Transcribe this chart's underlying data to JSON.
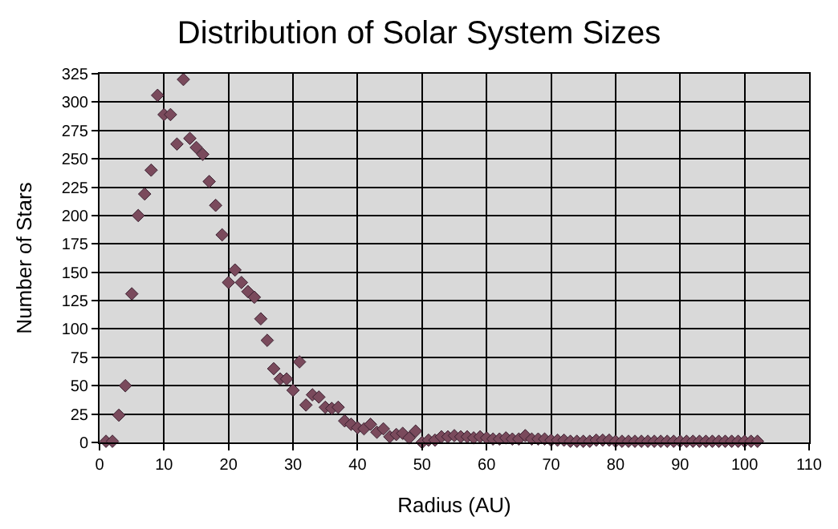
{
  "chart_data": {
    "type": "scatter",
    "title": "Distribution of Solar System Sizes",
    "xlabel": "Radius (AU)",
    "ylabel": "Number of Stars",
    "x": [
      1,
      2,
      3,
      4,
      5,
      6,
      7,
      8,
      9,
      10,
      11,
      12,
      13,
      14,
      15,
      16,
      17,
      18,
      19,
      20,
      21,
      22,
      23,
      24,
      25,
      26,
      27,
      28,
      29,
      30,
      31,
      32,
      33,
      34,
      35,
      36,
      37,
      38,
      39,
      40,
      41,
      42,
      43,
      44,
      45,
      46,
      47,
      48,
      49,
      50,
      51,
      52,
      53,
      54,
      55,
      56,
      57,
      58,
      59,
      60,
      61,
      62,
      63,
      64,
      65,
      66,
      67,
      68,
      69,
      70,
      71,
      72,
      73,
      74,
      75,
      76,
      77,
      78,
      79,
      80,
      81,
      82,
      83,
      84,
      85,
      86,
      87,
      88,
      89,
      90,
      91,
      92,
      93,
      94,
      95,
      96,
      97,
      98,
      99,
      100,
      101,
      102
    ],
    "series": [
      {
        "color": "#7a4a5c",
        "values": [
          1,
          1,
          24,
          50,
          131,
          200,
          219,
          240,
          306,
          289,
          289,
          263,
          320,
          268,
          260,
          254,
          230,
          209,
          183,
          141,
          152,
          141,
          133,
          128,
          109,
          90,
          65,
          56,
          56,
          46,
          71,
          33,
          42,
          40,
          31,
          30,
          31,
          19,
          16,
          13,
          12,
          16,
          9,
          12,
          5,
          7,
          8,
          4,
          10,
          0,
          2,
          2,
          5,
          5,
          6,
          5,
          5,
          4,
          5,
          4,
          3,
          3,
          4,
          3,
          3,
          6,
          3,
          3,
          3,
          2,
          2,
          2,
          1,
          1,
          1,
          1,
          2,
          2,
          2,
          1,
          1,
          1,
          1,
          1,
          1,
          1,
          1,
          1,
          1,
          1,
          1,
          1,
          1,
          1,
          1,
          1,
          1,
          1,
          1,
          1,
          1,
          1
        ]
      }
    ],
    "xlim": [
      0,
      110
    ],
    "xticks": [
      0,
      10,
      20,
      30,
      40,
      50,
      60,
      70,
      80,
      90,
      100,
      110
    ],
    "ylim": [
      0,
      325
    ],
    "yticks": [
      0,
      25,
      50,
      75,
      100,
      125,
      150,
      175,
      200,
      225,
      250,
      275,
      300,
      325
    ],
    "grid": true,
    "marker": "diamond",
    "legend": false
  }
}
